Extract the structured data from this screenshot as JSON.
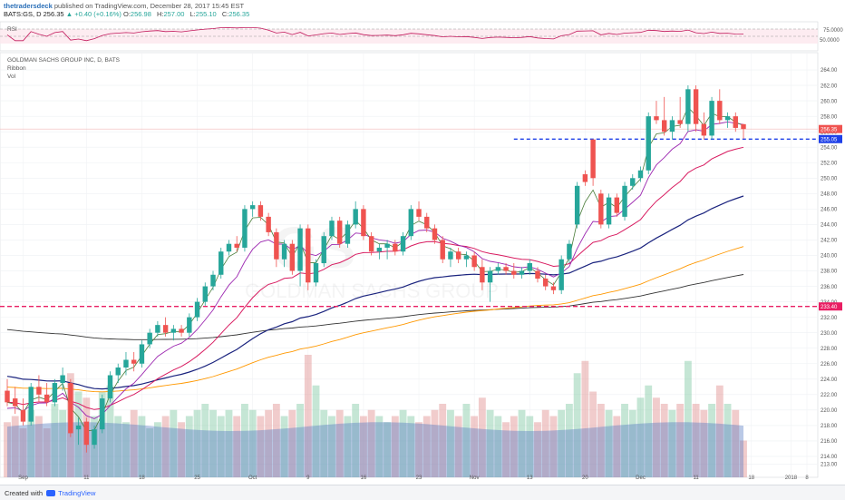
{
  "header": {
    "publisher": "thetradersdeck",
    "published_text": "published on TradingView.com, December 28, 2017 15:45 EST",
    "symbol_line": "BATS:GS, D",
    "last": "256.35",
    "change": "▲ +0.40 (+0.16%)",
    "o_label": "O:",
    "o_value": "256.98",
    "h_label": "H:",
    "h_value": "257.00",
    "l_label": "L:",
    "l_value": "255.10",
    "c_label": "C:",
    "c_value": "256.35"
  },
  "rsi_panel": {
    "label": "RSI",
    "levels": [
      "75.0000",
      "50.0000"
    ]
  },
  "main_panel": {
    "title": "GOLDMAN SACHS GROUP INC, D, BATS",
    "legend": [
      "Ribbon",
      "Vol"
    ],
    "watermark_symbol": "GS",
    "watermark_name": "GOLDMAN SACHS GROUP I"
  },
  "footer": {
    "created_with": "Created with",
    "brand": "TradingView"
  },
  "colors": {
    "up": "#26a69a",
    "down": "#ef5350",
    "rsi": "#c2185b",
    "ema_fast": "#9c27b0",
    "ema_red": "#d81b60",
    "ema_blue": "#1a237e",
    "ema_orange": "#ff9800",
    "sma_black": "#333333",
    "hline": "#e91e63",
    "hline_blue": "#1e40e8",
    "vol": "#5b7fc4"
  },
  "chart_data": {
    "type": "candlestick",
    "y_ticks": [
      "264.00",
      "262.00",
      "260.00",
      "258.00",
      "256.00",
      "254.00",
      "252.00",
      "250.00",
      "248.00",
      "246.00",
      "244.00",
      "242.00",
      "240.00",
      "238.00",
      "236.00",
      "234.00",
      "232.00",
      "230.00",
      "228.00",
      "226.00",
      "224.00",
      "222.00",
      "220.00",
      "218.00",
      "216.00",
      "214.00",
      "213.00"
    ],
    "x_ticks": [
      "Sep",
      "11",
      "18",
      "25",
      "Oct",
      "9",
      "16",
      "23",
      "Nov",
      "13",
      "20",
      "Dec",
      "11",
      "18",
      "2018",
      "8"
    ],
    "price_labels": [
      {
        "value": 256.35,
        "text": "256.35",
        "color": "#ef5350"
      },
      {
        "value": 255.05,
        "text": "255.05",
        "color": "#1e40e8"
      },
      {
        "value": 233.4,
        "text": "233.40",
        "color": "#e91e63"
      }
    ],
    "hlines": [
      {
        "value": 256.35,
        "style": "solid-thin"
      },
      {
        "value": 255.05,
        "style": "dashed-blue",
        "from_index": 64
      },
      {
        "value": 233.4,
        "style": "dashed-pink"
      }
    ],
    "candles": [
      {
        "o": 222.5,
        "h": 224.0,
        "l": 220.5,
        "c": 221.0
      },
      {
        "o": 221.5,
        "h": 223.0,
        "l": 219.5,
        "c": 220.5
      },
      {
        "o": 220.0,
        "h": 221.5,
        "l": 218.0,
        "c": 218.5
      },
      {
        "o": 218.5,
        "h": 223.5,
        "l": 218.0,
        "c": 223.0
      },
      {
        "o": 223.0,
        "h": 224.5,
        "l": 221.0,
        "c": 222.0
      },
      {
        "o": 222.0,
        "h": 223.5,
        "l": 220.5,
        "c": 221.0
      },
      {
        "o": 221.0,
        "h": 224.0,
        "l": 220.5,
        "c": 223.5
      },
      {
        "o": 223.5,
        "h": 225.5,
        "l": 222.5,
        "c": 224.5
      },
      {
        "o": 223.5,
        "h": 224.0,
        "l": 216.5,
        "c": 217.0
      },
      {
        "o": 217.5,
        "h": 219.0,
        "l": 215.5,
        "c": 218.0
      },
      {
        "o": 218.5,
        "h": 219.0,
        "l": 214.5,
        "c": 215.5
      },
      {
        "o": 215.5,
        "h": 218.0,
        "l": 215.0,
        "c": 217.5
      },
      {
        "o": 217.5,
        "h": 222.0,
        "l": 217.0,
        "c": 221.5
      },
      {
        "o": 221.5,
        "h": 225.0,
        "l": 221.0,
        "c": 224.5
      },
      {
        "o": 224.5,
        "h": 226.0,
        "l": 223.5,
        "c": 225.5
      },
      {
        "o": 225.5,
        "h": 227.5,
        "l": 224.5,
        "c": 226.5
      },
      {
        "o": 226.5,
        "h": 227.5,
        "l": 225.0,
        "c": 226.0
      },
      {
        "o": 226.0,
        "h": 229.0,
        "l": 225.5,
        "c": 228.5
      },
      {
        "o": 228.5,
        "h": 230.5,
        "l": 228.0,
        "c": 230.0
      },
      {
        "o": 230.0,
        "h": 231.5,
        "l": 229.5,
        "c": 231.0
      },
      {
        "o": 231.0,
        "h": 232.0,
        "l": 229.5,
        "c": 230.0
      },
      {
        "o": 230.0,
        "h": 231.0,
        "l": 229.0,
        "c": 230.5
      },
      {
        "o": 230.5,
        "h": 231.0,
        "l": 229.5,
        "c": 230.0
      },
      {
        "o": 230.0,
        "h": 232.5,
        "l": 229.5,
        "c": 232.0
      },
      {
        "o": 232.0,
        "h": 234.5,
        "l": 231.5,
        "c": 234.0
      },
      {
        "o": 234.0,
        "h": 236.5,
        "l": 233.5,
        "c": 236.0
      },
      {
        "o": 236.0,
        "h": 238.0,
        "l": 235.5,
        "c": 237.5
      },
      {
        "o": 237.5,
        "h": 241.0,
        "l": 237.0,
        "c": 240.5
      },
      {
        "o": 240.5,
        "h": 242.0,
        "l": 240.0,
        "c": 241.5
      },
      {
        "o": 241.5,
        "h": 242.5,
        "l": 240.5,
        "c": 241.0
      },
      {
        "o": 241.0,
        "h": 246.5,
        "l": 240.5,
        "c": 246.0
      },
      {
        "o": 246.0,
        "h": 247.0,
        "l": 245.0,
        "c": 246.5
      },
      {
        "o": 246.5,
        "h": 247.0,
        "l": 244.5,
        "c": 245.0
      },
      {
        "o": 245.0,
        "h": 245.5,
        "l": 242.5,
        "c": 243.0
      },
      {
        "o": 243.0,
        "h": 243.5,
        "l": 238.5,
        "c": 239.5
      },
      {
        "o": 239.5,
        "h": 242.0,
        "l": 238.5,
        "c": 241.5
      },
      {
        "o": 241.5,
        "h": 242.0,
        "l": 237.5,
        "c": 238.0
      },
      {
        "o": 238.0,
        "h": 244.0,
        "l": 236.0,
        "c": 243.5
      },
      {
        "o": 243.5,
        "h": 244.0,
        "l": 235.5,
        "c": 236.5
      },
      {
        "o": 236.5,
        "h": 239.5,
        "l": 236.0,
        "c": 239.0
      },
      {
        "o": 239.0,
        "h": 243.0,
        "l": 238.5,
        "c": 242.5
      },
      {
        "o": 242.5,
        "h": 245.0,
        "l": 242.0,
        "c": 244.5
      },
      {
        "o": 244.5,
        "h": 245.0,
        "l": 241.0,
        "c": 241.5
      },
      {
        "o": 241.5,
        "h": 244.5,
        "l": 241.0,
        "c": 244.0
      },
      {
        "o": 244.0,
        "h": 247.0,
        "l": 243.5,
        "c": 246.0
      },
      {
        "o": 246.0,
        "h": 246.5,
        "l": 242.0,
        "c": 242.5
      },
      {
        "o": 242.5,
        "h": 243.0,
        "l": 240.0,
        "c": 240.5
      },
      {
        "o": 240.5,
        "h": 241.5,
        "l": 239.5,
        "c": 241.0
      },
      {
        "o": 241.0,
        "h": 242.0,
        "l": 239.5,
        "c": 241.5
      },
      {
        "o": 241.5,
        "h": 242.0,
        "l": 240.0,
        "c": 240.5
      },
      {
        "o": 240.5,
        "h": 243.0,
        "l": 240.0,
        "c": 242.5
      },
      {
        "o": 242.5,
        "h": 246.5,
        "l": 242.0,
        "c": 246.0
      },
      {
        "o": 246.0,
        "h": 247.0,
        "l": 244.5,
        "c": 245.0
      },
      {
        "o": 245.0,
        "h": 245.5,
        "l": 243.0,
        "c": 243.5
      },
      {
        "o": 243.5,
        "h": 244.0,
        "l": 241.5,
        "c": 242.0
      },
      {
        "o": 242.0,
        "h": 242.5,
        "l": 239.0,
        "c": 239.5
      },
      {
        "o": 239.5,
        "h": 241.0,
        "l": 238.5,
        "c": 240.5
      },
      {
        "o": 240.5,
        "h": 241.0,
        "l": 239.0,
        "c": 239.5
      },
      {
        "o": 239.5,
        "h": 240.5,
        "l": 238.5,
        "c": 240.0
      },
      {
        "o": 240.0,
        "h": 240.5,
        "l": 238.0,
        "c": 238.5
      },
      {
        "o": 238.5,
        "h": 239.5,
        "l": 235.5,
        "c": 236.5
      },
      {
        "o": 236.5,
        "h": 238.5,
        "l": 234.0,
        "c": 238.0
      },
      {
        "o": 238.0,
        "h": 239.0,
        "l": 237.5,
        "c": 238.5
      },
      {
        "o": 238.5,
        "h": 239.0,
        "l": 237.5,
        "c": 238.0
      },
      {
        "o": 238.0,
        "h": 239.0,
        "l": 237.0,
        "c": 237.5
      },
      {
        "o": 237.5,
        "h": 238.5,
        "l": 237.0,
        "c": 238.0
      },
      {
        "o": 238.0,
        "h": 239.5,
        "l": 237.5,
        "c": 239.0
      },
      {
        "o": 238.0,
        "h": 238.5,
        "l": 236.5,
        "c": 237.0
      },
      {
        "o": 237.0,
        "h": 237.5,
        "l": 235.5,
        "c": 236.0
      },
      {
        "o": 236.0,
        "h": 236.5,
        "l": 235.0,
        "c": 235.5
      },
      {
        "o": 235.5,
        "h": 240.0,
        "l": 235.0,
        "c": 239.5
      },
      {
        "o": 239.5,
        "h": 242.0,
        "l": 239.0,
        "c": 241.5
      },
      {
        "o": 244.0,
        "h": 249.5,
        "l": 243.5,
        "c": 249.0
      },
      {
        "o": 250.5,
        "h": 251.0,
        "l": 249.0,
        "c": 249.5
      },
      {
        "o": 255.0,
        "h": 255.0,
        "l": 249.0,
        "c": 250.0
      },
      {
        "o": 248.0,
        "h": 248.5,
        "l": 243.5,
        "c": 244.0
      },
      {
        "o": 244.0,
        "h": 248.0,
        "l": 243.5,
        "c": 247.5
      },
      {
        "o": 247.5,
        "h": 248.0,
        "l": 245.0,
        "c": 245.5
      },
      {
        "o": 245.0,
        "h": 249.5,
        "l": 244.5,
        "c": 249.0
      },
      {
        "o": 249.0,
        "h": 250.5,
        "l": 248.5,
        "c": 250.0
      },
      {
        "o": 250.0,
        "h": 251.5,
        "l": 249.5,
        "c": 251.0
      },
      {
        "o": 251.0,
        "h": 258.5,
        "l": 250.5,
        "c": 258.0
      },
      {
        "o": 258.0,
        "h": 260.0,
        "l": 257.0,
        "c": 257.5
      },
      {
        "o": 257.5,
        "h": 260.5,
        "l": 255.5,
        "c": 256.0
      },
      {
        "o": 256.0,
        "h": 258.0,
        "l": 255.0,
        "c": 257.5
      },
      {
        "o": 257.5,
        "h": 260.5,
        "l": 256.5,
        "c": 257.0
      },
      {
        "o": 257.0,
        "h": 262.0,
        "l": 256.0,
        "c": 261.5
      },
      {
        "o": 261.5,
        "h": 262.0,
        "l": 256.0,
        "c": 257.0
      },
      {
        "o": 257.0,
        "h": 258.5,
        "l": 255.0,
        "c": 255.5
      },
      {
        "o": 255.5,
        "h": 260.5,
        "l": 255.0,
        "c": 260.0
      },
      {
        "o": 260.0,
        "h": 261.5,
        "l": 257.0,
        "c": 257.5
      },
      {
        "o": 257.5,
        "h": 258.5,
        "l": 256.5,
        "c": 258.0
      },
      {
        "o": 258.0,
        "h": 258.5,
        "l": 256.0,
        "c": 256.5
      },
      {
        "o": 256.98,
        "h": 257.0,
        "l": 255.1,
        "c": 256.35
      }
    ],
    "volume_relative": [
      0.45,
      0.5,
      0.4,
      0.55,
      0.5,
      0.4,
      0.6,
      0.55,
      0.85,
      0.7,
      0.65,
      0.5,
      0.7,
      0.75,
      0.5,
      0.45,
      0.55,
      0.5,
      0.4,
      0.45,
      0.5,
      0.55,
      0.45,
      0.5,
      0.55,
      0.6,
      0.55,
      0.5,
      0.55,
      0.5,
      0.6,
      0.55,
      0.5,
      0.55,
      0.6,
      0.5,
      0.55,
      0.6,
      1.0,
      0.75,
      0.55,
      0.5,
      0.55,
      0.5,
      0.6,
      0.5,
      0.55,
      0.5,
      0.45,
      0.5,
      0.55,
      0.5,
      0.45,
      0.5,
      0.55,
      0.6,
      0.55,
      0.5,
      0.6,
      0.5,
      0.65,
      0.55,
      0.5,
      0.45,
      0.5,
      0.55,
      0.5,
      0.45,
      0.55,
      0.5,
      0.55,
      0.6,
      0.85,
      0.95,
      0.7,
      0.6,
      0.55,
      0.5,
      0.6,
      0.55,
      0.65,
      0.75,
      0.65,
      0.6,
      0.55,
      0.6,
      0.95,
      0.6,
      0.55,
      0.6,
      0.75,
      0.6,
      0.55,
      0.3
    ],
    "volume_average_relative": 0.45
  }
}
